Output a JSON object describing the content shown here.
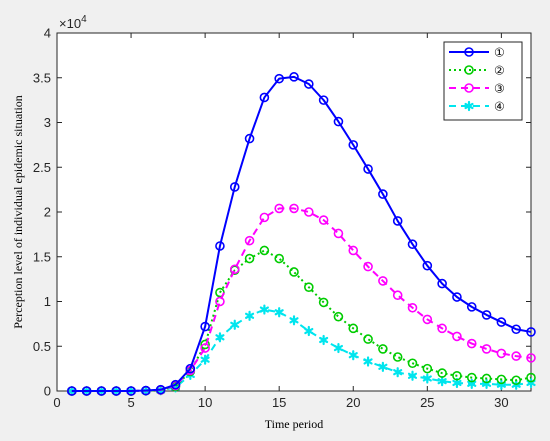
{
  "chart_data": {
    "type": "line",
    "xlabel": "Time period",
    "ylabel": "Perception level of individual epidemic situation",
    "xlim": [
      0,
      32
    ],
    "ylim": [
      0,
      40000
    ],
    "y_exponent_label": "×10",
    "y_exponent_power": "4",
    "xticks": [
      {
        "value": 0,
        "label": "0"
      },
      {
        "value": 5,
        "label": "5"
      },
      {
        "value": 10,
        "label": "10"
      },
      {
        "value": 15,
        "label": "15"
      },
      {
        "value": 20,
        "label": "20"
      },
      {
        "value": 25,
        "label": "25"
      },
      {
        "value": 30,
        "label": "30"
      }
    ],
    "yticks": [
      {
        "value": 0,
        "label": "0"
      },
      {
        "value": 5000,
        "label": "0.5"
      },
      {
        "value": 10000,
        "label": "1"
      },
      {
        "value": 15000,
        "label": "1.5"
      },
      {
        "value": 20000,
        "label": "2"
      },
      {
        "value": 25000,
        "label": "2.5"
      },
      {
        "value": 30000,
        "label": "3"
      },
      {
        "value": 35000,
        "label": "3.5"
      },
      {
        "value": 40000,
        "label": "4"
      }
    ],
    "grid": false,
    "legend_position": "top-right",
    "x": [
      1,
      2,
      3,
      4,
      5,
      6,
      7,
      8,
      9,
      10,
      11,
      12,
      13,
      14,
      15,
      16,
      17,
      18,
      19,
      20,
      21,
      22,
      23,
      24,
      25,
      26,
      27,
      28,
      29,
      30,
      31,
      32
    ],
    "series": [
      {
        "name": "①",
        "color": "#0000ff",
        "line_style": "solid",
        "marker": "circle",
        "values": [
          0,
          0,
          0,
          0,
          0,
          50,
          150,
          700,
          2500,
          7200,
          16200,
          22800,
          28200,
          32800,
          34900,
          35100,
          34300,
          32500,
          30100,
          27500,
          24800,
          22000,
          19000,
          16400,
          14000,
          12000,
          10500,
          9400,
          8500,
          7700,
          6900,
          6600
        ]
      },
      {
        "name": "②",
        "color": "#00cc00",
        "line_style": "dotted",
        "marker": "circle",
        "values": [
          0,
          0,
          0,
          0,
          0,
          30,
          100,
          500,
          2200,
          5200,
          11000,
          13500,
          14800,
          15700,
          14800,
          13300,
          11600,
          9900,
          8300,
          7000,
          5800,
          4700,
          3800,
          3100,
          2500,
          2000,
          1700,
          1500,
          1400,
          1300,
          1200,
          1500
        ]
      },
      {
        "name": "③",
        "color": "#ff00ff",
        "line_style": "dashed",
        "marker": "circle",
        "values": [
          0,
          0,
          0,
          0,
          0,
          40,
          120,
          600,
          2300,
          4800,
          10000,
          13600,
          16800,
          19400,
          20400,
          20400,
          20000,
          19100,
          17600,
          15700,
          13900,
          12300,
          10700,
          9300,
          8000,
          7000,
          6100,
          5300,
          4700,
          4200,
          3900,
          3700
        ]
      },
      {
        "name": "④",
        "color": "#00e5ee",
        "line_style": "dashed",
        "marker": "asterisk",
        "values": [
          0,
          0,
          0,
          0,
          0,
          20,
          80,
          400,
          1800,
          3500,
          6000,
          7400,
          8400,
          9100,
          8800,
          7900,
          6700,
          5700,
          4800,
          4000,
          3300,
          2700,
          2100,
          1700,
          1400,
          1100,
          900,
          800,
          800,
          700,
          700,
          900
        ]
      }
    ]
  }
}
